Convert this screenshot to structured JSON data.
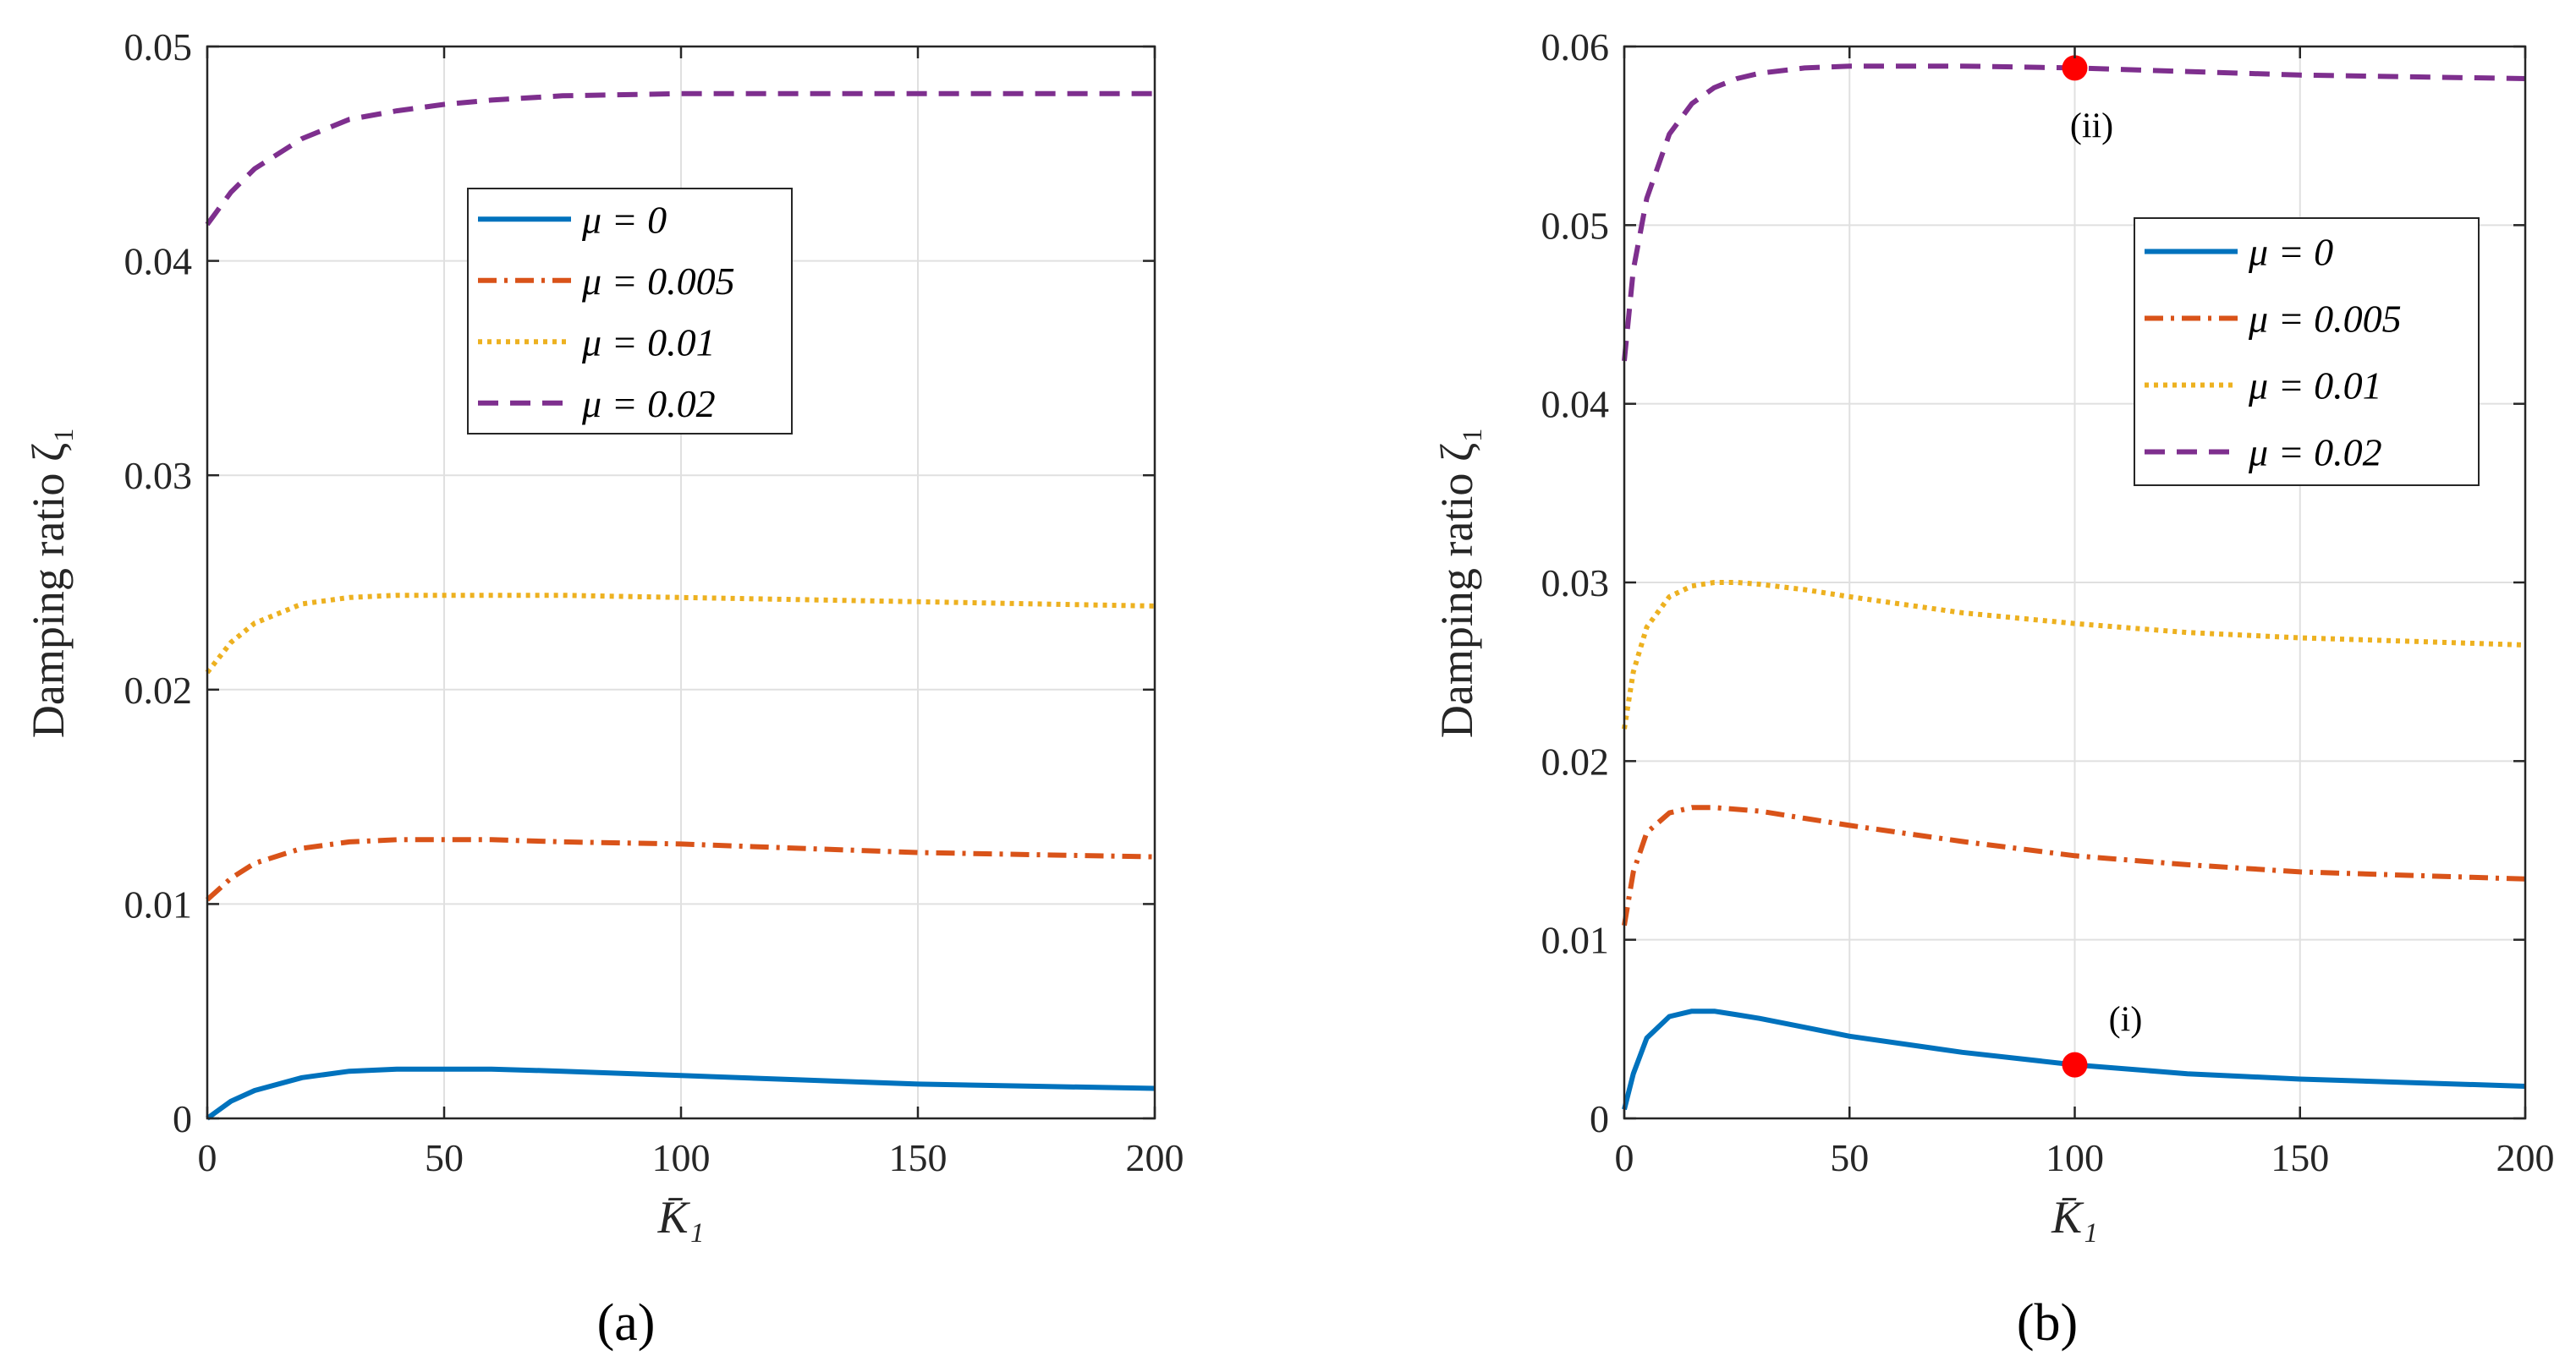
{
  "chart_data": [
    {
      "type": "line",
      "panel_label": "(a)",
      "xlabel": "K̄₁",
      "ylabel": "Damping ratio ζ₁",
      "xlim": [
        0,
        200
      ],
      "ylim": [
        0,
        0.05
      ],
      "xticks": [
        "0",
        "50",
        "100",
        "150",
        "200"
      ],
      "yticks": [
        "0",
        "0.01",
        "0.02",
        "0.03",
        "0.04",
        "0.05"
      ],
      "grid": true,
      "legend_position": "top-center",
      "series": [
        {
          "name": "μ = 0",
          "color": "#0072BD",
          "style": "solid",
          "x": [
            0,
            5,
            10,
            20,
            30,
            40,
            50,
            60,
            75,
            100,
            125,
            150,
            175,
            200
          ],
          "y": [
            0,
            0.0008,
            0.0013,
            0.0019,
            0.0022,
            0.0023,
            0.0023,
            0.0023,
            0.0022,
            0.002,
            0.0018,
            0.0016,
            0.0015,
            0.0014
          ]
        },
        {
          "name": "μ = 0.005",
          "color": "#D95319",
          "style": "dashdot",
          "x": [
            0,
            5,
            10,
            20,
            30,
            40,
            50,
            60,
            75,
            100,
            125,
            150,
            175,
            200
          ],
          "y": [
            0.0102,
            0.0112,
            0.0119,
            0.0126,
            0.0129,
            0.013,
            0.013,
            0.013,
            0.0129,
            0.0128,
            0.0126,
            0.0124,
            0.0123,
            0.0122
          ]
        },
        {
          "name": "μ = 0.01",
          "color": "#EDB120",
          "style": "dotted",
          "x": [
            0,
            5,
            10,
            20,
            30,
            40,
            50,
            60,
            75,
            100,
            125,
            150,
            175,
            200
          ],
          "y": [
            0.0208,
            0.0222,
            0.0231,
            0.024,
            0.0243,
            0.0244,
            0.0244,
            0.0244,
            0.0244,
            0.0243,
            0.0242,
            0.0241,
            0.024,
            0.0239
          ]
        },
        {
          "name": "μ = 0.02",
          "color": "#7E2F8E",
          "style": "dashed",
          "x": [
            0,
            5,
            10,
            20,
            30,
            40,
            50,
            60,
            75,
            100,
            125,
            150,
            175,
            200
          ],
          "y": [
            0.0417,
            0.0432,
            0.0443,
            0.0457,
            0.0466,
            0.047,
            0.0473,
            0.0475,
            0.0477,
            0.0478,
            0.0478,
            0.0478,
            0.0478,
            0.0478
          ]
        }
      ],
      "annotations": []
    },
    {
      "type": "line",
      "panel_label": "(b)",
      "xlabel": "K̄₁",
      "ylabel": "Damping ratio ζ₁",
      "xlim": [
        0,
        200
      ],
      "ylim": [
        0,
        0.06
      ],
      "xticks": [
        "0",
        "50",
        "100",
        "150",
        "200"
      ],
      "yticks": [
        "0",
        "0.01",
        "0.02",
        "0.03",
        "0.04",
        "0.05",
        "0.06"
      ],
      "grid": true,
      "legend_position": "top-right",
      "series": [
        {
          "name": "μ = 0",
          "color": "#0072BD",
          "style": "solid",
          "x": [
            0,
            2,
            5,
            10,
            15,
            20,
            25,
            30,
            40,
            50,
            75,
            100,
            125,
            150,
            175,
            200
          ],
          "y": [
            0.0005,
            0.0025,
            0.0045,
            0.0057,
            0.006,
            0.006,
            0.0058,
            0.0056,
            0.0051,
            0.0046,
            0.0037,
            0.003,
            0.0025,
            0.0022,
            0.002,
            0.0018
          ]
        },
        {
          "name": "μ = 0.005",
          "color": "#D95319",
          "style": "dashdot",
          "x": [
            0,
            2,
            5,
            10,
            15,
            20,
            25,
            30,
            40,
            50,
            75,
            100,
            125,
            150,
            175,
            200
          ],
          "y": [
            0.0108,
            0.0138,
            0.016,
            0.0171,
            0.0174,
            0.0174,
            0.0173,
            0.0172,
            0.0168,
            0.0164,
            0.0155,
            0.0147,
            0.0142,
            0.0138,
            0.0136,
            0.0134
          ]
        },
        {
          "name": "μ = 0.01",
          "color": "#EDB120",
          "style": "dotted",
          "x": [
            0,
            2,
            5,
            10,
            15,
            20,
            25,
            30,
            40,
            50,
            75,
            100,
            125,
            150,
            175,
            200
          ],
          "y": [
            0.0218,
            0.025,
            0.0275,
            0.0292,
            0.0298,
            0.03,
            0.03,
            0.0299,
            0.0296,
            0.0292,
            0.0283,
            0.0277,
            0.0272,
            0.0269,
            0.0267,
            0.0265
          ]
        },
        {
          "name": "μ = 0.02",
          "color": "#7E2F8E",
          "style": "dashed",
          "x": [
            0,
            2,
            5,
            10,
            15,
            20,
            25,
            30,
            40,
            50,
            60,
            75,
            100,
            125,
            150,
            175,
            200
          ],
          "y": [
            0.0424,
            0.0475,
            0.0515,
            0.0551,
            0.0568,
            0.0577,
            0.0582,
            0.0585,
            0.0588,
            0.0589,
            0.0589,
            0.0589,
            0.0588,
            0.0586,
            0.0584,
            0.0583,
            0.0582
          ]
        }
      ],
      "annotations": [
        {
          "label": "(i)",
          "x": 100,
          "y": 0.003,
          "color": "#FF0000"
        },
        {
          "label": "(ii)",
          "x": 100,
          "y": 0.0588,
          "color": "#FF0000"
        }
      ]
    }
  ]
}
